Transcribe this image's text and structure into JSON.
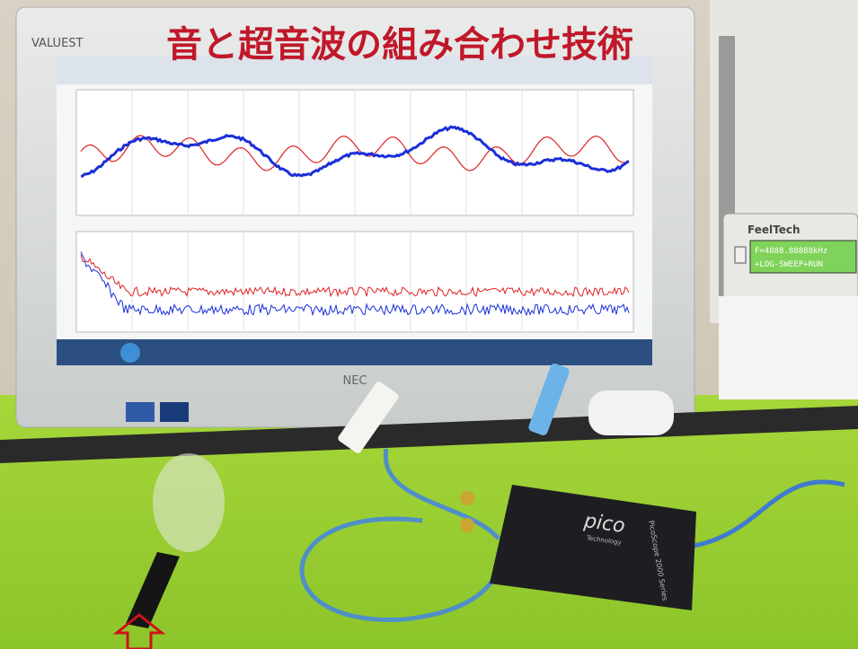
{
  "header": {
    "title": "音と超音波の組み合わせ技術"
  },
  "monitor": {
    "brand": "VALUEST",
    "maker": "NEC"
  },
  "generator": {
    "brand": "FeelTech",
    "lcd_line1": "F=4888.88888kHz",
    "lcd_line2": "+LOG-SWEEP+RUN"
  },
  "oscilloscope": {
    "logo": "pico",
    "sublogo": "Technology",
    "model": "PicoScope 2000 Series"
  }
}
